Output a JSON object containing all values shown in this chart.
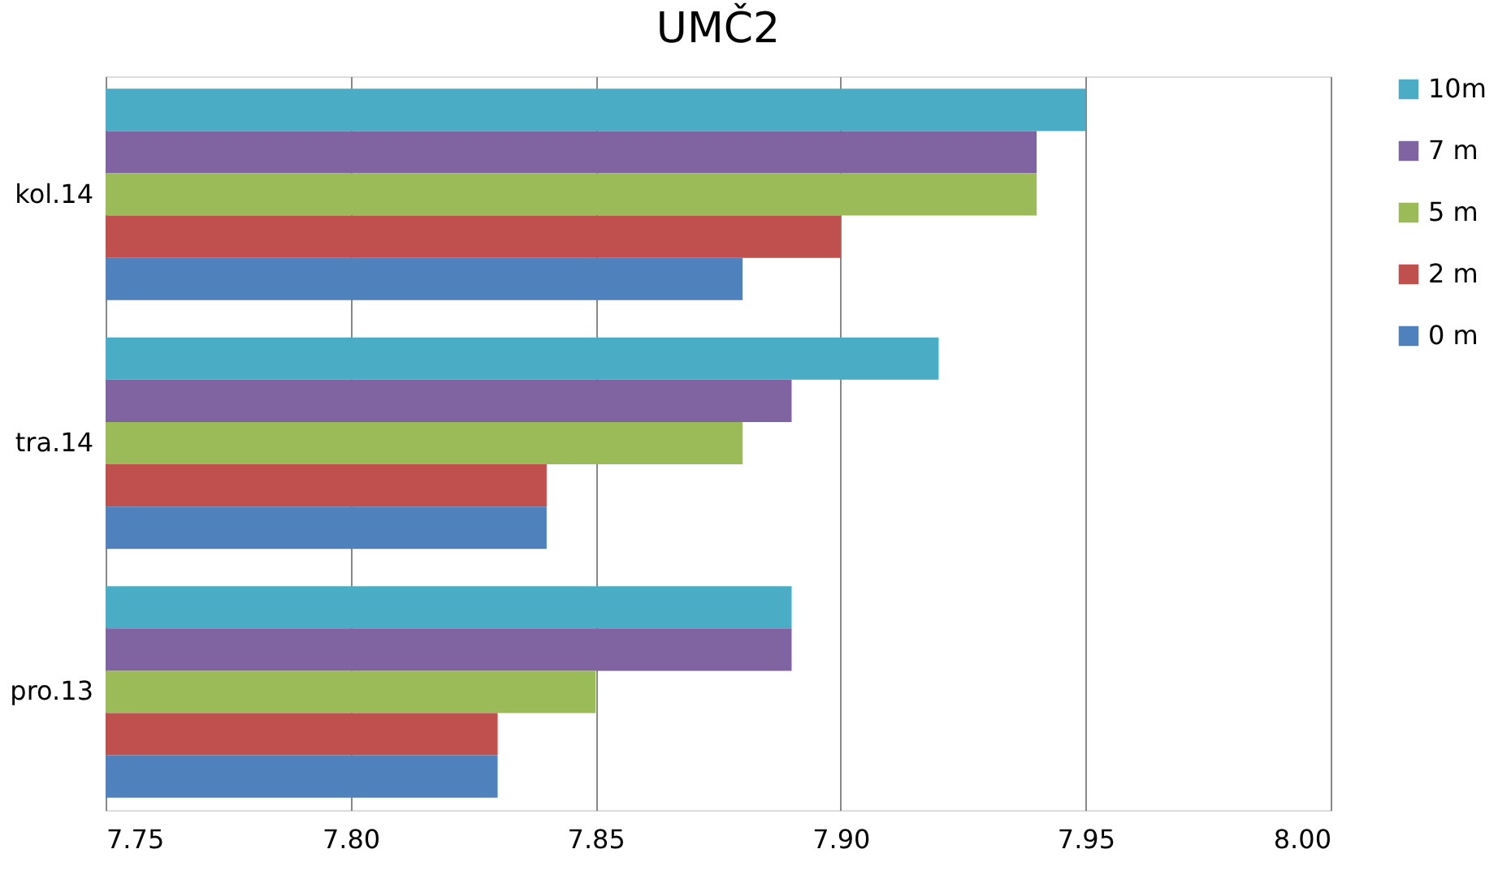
{
  "chart_data": {
    "type": "bar",
    "orientation": "horizontal",
    "title": "UMČ2",
    "categories": [
      "kol.14",
      "tra.14",
      "pro.13"
    ],
    "series": [
      {
        "name": "10m",
        "color": "#4bacc6",
        "values": [
          7.95,
          7.92,
          7.89
        ]
      },
      {
        "name": "7 m",
        "color": "#8064a2",
        "values": [
          7.94,
          7.89,
          7.89
        ]
      },
      {
        "name": "5 m",
        "color": "#9bbb59",
        "values": [
          7.94,
          7.88,
          7.85
        ]
      },
      {
        "name": "2 m",
        "color": "#c0504d",
        "values": [
          7.9,
          7.84,
          7.83
        ]
      },
      {
        "name": "0 m",
        "color": "#4f81bd",
        "values": [
          7.88,
          7.84,
          7.83
        ]
      }
    ],
    "xlim": [
      7.75,
      8.0
    ],
    "xticks": [
      7.75,
      {
        "value": 7.8,
        "label": "7.80"
      },
      7.85,
      {
        "value": 7.9,
        "label": "7.90"
      },
      7.95,
      {
        "value": 8.0,
        "label": "8.00"
      }
    ],
    "grid": "x",
    "legend": "right"
  }
}
